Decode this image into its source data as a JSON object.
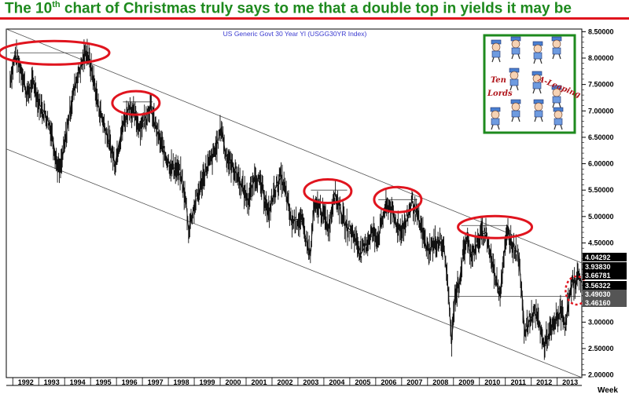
{
  "headline": {
    "pre": "The 10",
    "sup": "th",
    "post": " chart of Christmas truly says to me that a double top in yields it may be"
  },
  "chart_data": {
    "type": "line",
    "title": "US  Generic  Govt  30  Year  Yl   (USGG30YR Index)",
    "xlabel": "Week",
    "x_ticks": [
      "1992",
      "1993",
      "1994",
      "1995",
      "1996",
      "1997",
      "1998",
      "1999",
      "2000",
      "2001",
      "2002",
      "2003",
      "2004",
      "2005",
      "2006",
      "2007",
      "2008",
      "2009",
      "2010",
      "2011",
      "2012",
      "2013"
    ],
    "y_ticks": [
      "2.00000",
      "2.50000",
      "3.00000",
      "3.50000",
      "4.00000",
      "4.50000",
      "5.00000",
      "5.50000",
      "6.00000",
      "6.50000",
      "7.00000",
      "7.50000",
      "8.00000",
      "8.50000"
    ],
    "ylim": [
      1.95,
      8.55
    ],
    "xlim": [
      1991.75,
      2013.95
    ],
    "grid": false,
    "last_value_boxes": [
      "4.04292",
      "3.93830",
      "3.66781",
      "3.56322",
      "3.49030",
      "3.46160"
    ],
    "series": [
      {
        "values": [
          [
            1991.9,
            7.6
          ],
          [
            1992.1,
            8.05
          ],
          [
            1992.35,
            7.75
          ],
          [
            1992.55,
            7.3
          ],
          [
            1992.8,
            7.55
          ],
          [
            1993.0,
            7.15
          ],
          [
            1993.3,
            6.9
          ],
          [
            1993.5,
            6.6
          ],
          [
            1993.7,
            6.0
          ],
          [
            1993.82,
            5.85
          ],
          [
            1994.0,
            6.35
          ],
          [
            1994.2,
            7.0
          ],
          [
            1994.45,
            7.6
          ],
          [
            1994.7,
            7.95
          ],
          [
            1994.85,
            8.15
          ],
          [
            1995.05,
            7.75
          ],
          [
            1995.3,
            7.1
          ],
          [
            1995.55,
            6.7
          ],
          [
            1995.75,
            6.35
          ],
          [
            1995.95,
            6.0
          ],
          [
            1996.1,
            6.4
          ],
          [
            1996.3,
            6.8
          ],
          [
            1996.5,
            7.1
          ],
          [
            1996.7,
            6.9
          ],
          [
            1996.9,
            6.7
          ],
          [
            1997.1,
            6.85
          ],
          [
            1997.3,
            7.1
          ],
          [
            1997.45,
            6.8
          ],
          [
            1997.7,
            6.4
          ],
          [
            1997.9,
            6.15
          ],
          [
            1998.1,
            5.95
          ],
          [
            1998.3,
            5.9
          ],
          [
            1998.5,
            5.75
          ],
          [
            1998.7,
            5.2
          ],
          [
            1998.78,
            4.75
          ],
          [
            1998.95,
            5.1
          ],
          [
            1999.2,
            5.5
          ],
          [
            1999.45,
            5.9
          ],
          [
            1999.7,
            6.1
          ],
          [
            1999.9,
            6.4
          ],
          [
            2000.05,
            6.7
          ],
          [
            2000.2,
            6.2
          ],
          [
            2000.4,
            6.0
          ],
          [
            2000.65,
            5.8
          ],
          [
            2000.9,
            5.5
          ],
          [
            2001.1,
            5.3
          ],
          [
            2001.35,
            5.8
          ],
          [
            2001.6,
            5.55
          ],
          [
            2001.75,
            5.3
          ],
          [
            2001.85,
            5.0
          ],
          [
            2002.1,
            5.5
          ],
          [
            2002.35,
            5.75
          ],
          [
            2002.55,
            5.4
          ],
          [
            2002.75,
            4.9
          ],
          [
            2002.95,
            4.95
          ],
          [
            2003.15,
            4.9
          ],
          [
            2003.35,
            4.5
          ],
          [
            2003.48,
            4.25
          ],
          [
            2003.6,
            5.1
          ],
          [
            2003.8,
            5.2
          ],
          [
            2004.0,
            5.0
          ],
          [
            2004.2,
            4.8
          ],
          [
            2004.4,
            5.45
          ],
          [
            2004.6,
            5.2
          ],
          [
            2004.8,
            4.85
          ],
          [
            2005.0,
            4.75
          ],
          [
            2005.2,
            4.6
          ],
          [
            2005.45,
            4.3
          ],
          [
            2005.6,
            4.45
          ],
          [
            2005.85,
            4.7
          ],
          [
            2006.1,
            4.6
          ],
          [
            2006.35,
            5.15
          ],
          [
            2006.55,
            5.2
          ],
          [
            2006.75,
            4.9
          ],
          [
            2006.95,
            4.75
          ],
          [
            2007.15,
            4.85
          ],
          [
            2007.4,
            5.3
          ],
          [
            2007.6,
            5.0
          ],
          [
            2007.8,
            4.7
          ],
          [
            2008.0,
            4.35
          ],
          [
            2008.2,
            4.45
          ],
          [
            2008.45,
            4.55
          ],
          [
            2008.65,
            4.35
          ],
          [
            2008.8,
            3.6
          ],
          [
            2008.93,
            2.6
          ],
          [
            2009.05,
            3.5
          ],
          [
            2009.2,
            3.7
          ],
          [
            2009.35,
            4.2
          ],
          [
            2009.5,
            4.6
          ],
          [
            2009.65,
            4.3
          ],
          [
            2009.85,
            4.4
          ],
          [
            2010.05,
            4.65
          ],
          [
            2010.25,
            4.7
          ],
          [
            2010.45,
            4.2
          ],
          [
            2010.65,
            3.8
          ],
          [
            2010.8,
            3.55
          ],
          [
            2010.95,
            4.3
          ],
          [
            2011.1,
            4.7
          ],
          [
            2011.3,
            4.45
          ],
          [
            2011.5,
            4.3
          ],
          [
            2011.65,
            3.5
          ],
          [
            2011.75,
            2.75
          ],
          [
            2011.9,
            3.0
          ],
          [
            2012.1,
            3.2
          ],
          [
            2012.3,
            3.0
          ],
          [
            2012.48,
            2.55
          ],
          [
            2012.65,
            2.75
          ],
          [
            2012.85,
            2.9
          ],
          [
            2013.0,
            3.1
          ],
          [
            2013.15,
            3.2
          ],
          [
            2013.3,
            2.95
          ],
          [
            2013.45,
            3.4
          ],
          [
            2013.6,
            3.75
          ],
          [
            2013.75,
            3.8
          ],
          [
            2013.85,
            3.9
          ],
          [
            2013.93,
            3.75
          ]
        ]
      }
    ],
    "channel_lines": [
      {
        "points": [
          [
            1991.75,
            8.55
          ],
          [
            2013.95,
            4.12
          ]
        ]
      },
      {
        "points": [
          [
            1991.75,
            6.28
          ],
          [
            2013.95,
            1.95
          ]
        ]
      }
    ],
    "resistance_lines": [
      {
        "x": [
          1991.9,
          1995.0
        ],
        "y": 8.1
      },
      {
        "x": [
          1996.25,
          1997.4
        ],
        "y": 7.17
      },
      {
        "x": [
          2003.5,
          2004.9
        ],
        "y": 5.5
      },
      {
        "x": [
          2006.1,
          2007.6
        ],
        "y": 5.32
      },
      {
        "x": [
          2009.3,
          2011.1
        ],
        "y": 4.83
      },
      {
        "x": [
          2008.8,
          2013.9
        ],
        "y": 3.49
      }
    ],
    "highlight_ellipses": [
      {
        "cx": 1993.6,
        "cy": 8.1
      },
      {
        "cx": 1996.75,
        "cy": 7.15
      },
      {
        "cx": 2004.15,
        "cy": 5.48
      },
      {
        "cx": 2006.85,
        "cy": 5.32
      },
      {
        "cx": 2010.6,
        "cy": 4.8
      },
      {
        "cx": 2013.75,
        "cy": 3.6,
        "dashed": true
      }
    ],
    "inset": {
      "words": [
        "Ten",
        "Lords",
        "A-Leaping"
      ],
      "border_color": "#1e8a1e"
    }
  }
}
